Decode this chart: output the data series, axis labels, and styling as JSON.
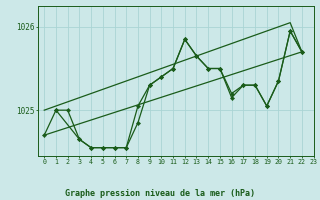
{
  "title": "Graphe pression niveau de la mer (hPa)",
  "background_color": "#cce8e8",
  "plot_bg_color": "#cce8e8",
  "line_color": "#1a5c1a",
  "grid_color": "#aad4d4",
  "xlim": [
    -0.5,
    23
  ],
  "ylim": [
    1024.45,
    1026.25
  ],
  "yticks": [
    1025,
    1026
  ],
  "xticks": [
    0,
    1,
    2,
    3,
    4,
    5,
    6,
    7,
    8,
    9,
    10,
    11,
    12,
    13,
    14,
    15,
    16,
    17,
    18,
    19,
    20,
    21,
    22,
    23
  ],
  "line1_x": [
    0,
    1,
    2,
    3,
    4,
    5,
    6,
    7,
    8,
    9,
    10,
    11,
    12,
    13,
    14,
    15,
    16,
    17,
    18,
    19,
    20,
    21,
    22
  ],
  "line1_y": [
    1024.7,
    1025.0,
    1025.0,
    1024.65,
    1024.55,
    1024.55,
    1024.55,
    1024.55,
    1024.85,
    1025.3,
    1025.4,
    1025.5,
    1025.85,
    1025.65,
    1025.5,
    1025.5,
    1025.2,
    1025.3,
    1025.3,
    1025.05,
    1025.35,
    1025.95,
    1025.7
  ],
  "line2_x": [
    1,
    3,
    4,
    5,
    6,
    7,
    8,
    9,
    10,
    11,
    12,
    13,
    14,
    15,
    16,
    17,
    18,
    19,
    20,
    21,
    22
  ],
  "line2_y": [
    1025.0,
    1024.65,
    1024.55,
    1024.55,
    1024.55,
    1024.55,
    1025.05,
    1025.3,
    1025.4,
    1025.5,
    1025.85,
    1025.65,
    1025.5,
    1025.5,
    1025.15,
    1025.3,
    1025.3,
    1025.05,
    1025.35,
    1025.95,
    1025.7
  ],
  "trendline1_x": [
    0,
    22
  ],
  "trendline1_y": [
    1024.7,
    1025.7
  ],
  "trendline2_x": [
    0,
    21,
    22
  ],
  "trendline2_y": [
    1025.0,
    1026.05,
    1025.7
  ]
}
